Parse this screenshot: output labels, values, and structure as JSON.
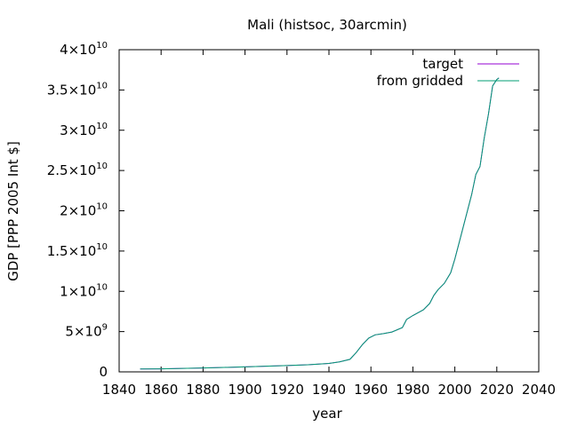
{
  "chart_data": {
    "type": "line",
    "title": "Mali (histsoc, 30arcmin)",
    "xlabel": "year",
    "ylabel": "GDP [PPP 2005 Int $]",
    "xlim": [
      1840,
      2040
    ],
    "ylim": [
      0,
      40000000000
    ],
    "grid": false,
    "legend_position": "top-right",
    "x_ticks": [
      "1840",
      "1860",
      "1880",
      "1900",
      "1920",
      "1940",
      "1960",
      "1980",
      "2000",
      "2020",
      "2040"
    ],
    "y_ticks": [
      {
        "mantissa": "0",
        "exp": ""
      },
      {
        "mantissa": "5×10",
        "exp": "9"
      },
      {
        "mantissa": "1×10",
        "exp": "10"
      },
      {
        "mantissa": "1.5×10",
        "exp": "10"
      },
      {
        "mantissa": "2×10",
        "exp": "10"
      },
      {
        "mantissa": "2.5×10",
        "exp": "10"
      },
      {
        "mantissa": "3×10",
        "exp": "10"
      },
      {
        "mantissa": "3.5×10",
        "exp": "10"
      },
      {
        "mantissa": "4×10",
        "exp": "10"
      }
    ],
    "series": [
      {
        "name": "target",
        "color": "#9400d3",
        "x": [
          1850,
          1860,
          1870,
          1880,
          1890,
          1900,
          1910,
          1920,
          1930,
          1940,
          1945,
          1950,
          1953,
          1956,
          1959,
          1962,
          1966,
          1970,
          1975,
          1977,
          1980,
          1985,
          1988,
          1990,
          1992,
          1995,
          1998,
          2000,
          2003,
          2005,
          2008,
          2010,
          2012,
          2014,
          2016,
          2018,
          2020,
          2021
        ],
        "y": [
          350000000,
          380000000,
          430000000,
          480000000,
          550000000,
          620000000,
          700000000,
          780000000,
          880000000,
          1050000000,
          1250000000,
          1550000000,
          2400000000,
          3400000000,
          4200000000,
          4600000000,
          4750000000,
          4950000000,
          5500000000,
          6500000000,
          7000000000,
          7700000000,
          8500000000,
          9500000000,
          10200000000,
          11000000000,
          12300000000,
          14000000000,
          17000000000,
          19000000000,
          22000000000,
          24500000000,
          25500000000,
          29000000000,
          32000000000,
          35500000000,
          36300000000,
          36500000000
        ]
      },
      {
        "name": "from gridded",
        "color": "#009e73",
        "x": [
          1850,
          1860,
          1870,
          1880,
          1890,
          1900,
          1910,
          1920,
          1930,
          1940,
          1945,
          1950,
          1953,
          1956,
          1959,
          1962,
          1966,
          1970,
          1975,
          1977,
          1980,
          1985,
          1988,
          1990,
          1992,
          1995,
          1998,
          2000,
          2003,
          2005,
          2008,
          2010,
          2012,
          2014,
          2016,
          2018,
          2020,
          2021
        ],
        "y": [
          350000000,
          380000000,
          430000000,
          480000000,
          550000000,
          620000000,
          700000000,
          780000000,
          880000000,
          1050000000,
          1250000000,
          1550000000,
          2400000000,
          3400000000,
          4200000000,
          4600000000,
          4750000000,
          4950000000,
          5500000000,
          6500000000,
          7000000000,
          7700000000,
          8500000000,
          9500000000,
          10200000000,
          11000000000,
          12300000000,
          14000000000,
          17000000000,
          19000000000,
          22000000000,
          24500000000,
          25500000000,
          29000000000,
          32000000000,
          35500000000,
          36300000000,
          36500000000
        ]
      }
    ]
  }
}
